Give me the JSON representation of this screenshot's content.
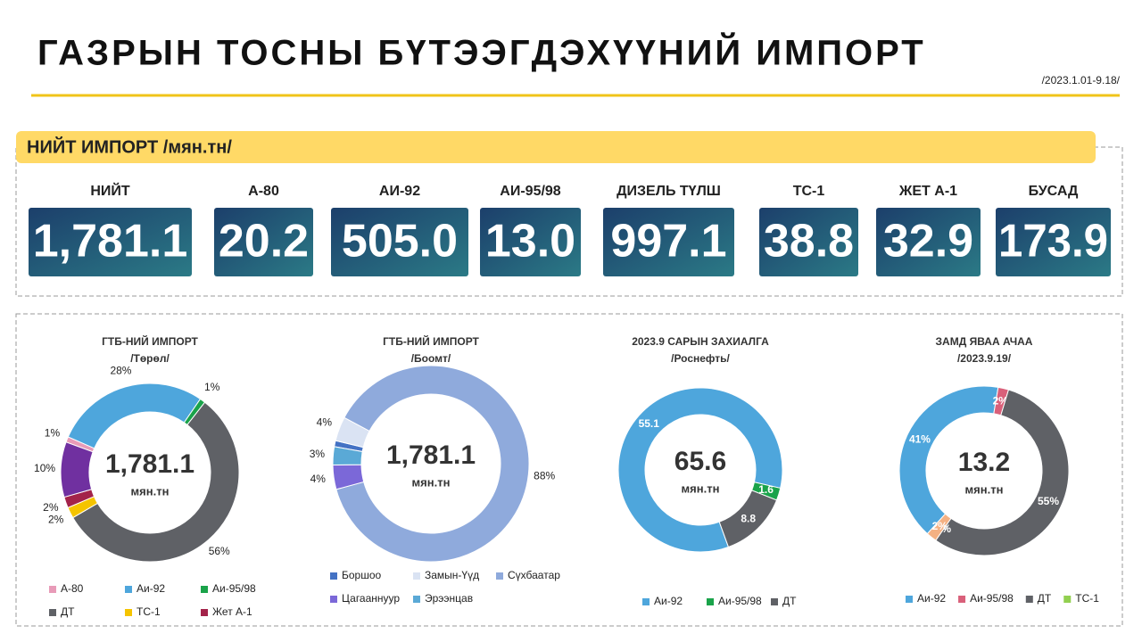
{
  "title": "ГАЗРЫН ТОСНЫ БҮТЭЭГДЭХҮҮНИЙ ИМПОРТ",
  "date": "/2023.1.01-9.18/",
  "section_title": "НИЙТ ИМПОРТ /мян.тн/",
  "kpis": [
    {
      "label": "НИЙТ",
      "value": "1,781.1"
    },
    {
      "label": "А-80",
      "value": "20.2"
    },
    {
      "label": "АИ-92",
      "value": "505.0"
    },
    {
      "label": "АИ-95/98",
      "value": "13.0"
    },
    {
      "label": "ДИЗЕЛЬ ТҮЛШ",
      "value": "997.1"
    },
    {
      "label": "ТС-1",
      "value": "38.8"
    },
    {
      "label": "ЖЕТ А-1",
      "value": "32.9"
    },
    {
      "label": "БУСАД",
      "value": "173.9"
    }
  ],
  "chart_data": [
    {
      "type": "donut",
      "title": "ГТБ-НИЙ ИМПОРТ",
      "subtitle": "/Төрөл/",
      "center_label": "1,781.1",
      "center_unit": "мян.тн",
      "categories": [
        "А-80",
        "Аи-92",
        "Аи-95/98",
        "ДТ",
        "ТС-1",
        "Жет А-1",
        null
      ],
      "values": [
        1,
        28,
        1,
        56,
        2,
        2,
        10
      ],
      "value_labels": [
        "1%",
        "28%",
        "1%",
        "56%",
        "2%",
        "2%",
        "10%"
      ],
      "colors": [
        "#e89bb8",
        "#4ea6dc",
        "#1aa34a",
        "#5f6166",
        "#f5c400",
        "#a3234a",
        "#7030a0"
      ]
    },
    {
      "type": "donut",
      "title": "ГТБ-НИЙ ИМПОРТ",
      "subtitle": "/Боомт/",
      "center_label": "1,781.1",
      "center_unit": "мян.тн",
      "categories": [
        "Боршоо",
        "Замын-Үүд",
        "Сүхбаатар",
        "Цагааннуур",
        "Эрээнцав"
      ],
      "values": [
        1,
        4,
        88,
        4,
        3
      ],
      "value_labels": [
        null,
        "4%",
        "88%",
        "4%",
        "3%"
      ],
      "colors": [
        "#4472c4",
        "#dae3f3",
        "#8faadc",
        "#7b68d8",
        "#5aa9d6"
      ]
    },
    {
      "type": "donut",
      "title": "2023.9 САРЫН ЗАХИАЛГА",
      "subtitle": "/Роснефть/",
      "center_label": "65.6",
      "center_unit": "мян.тн",
      "categories": [
        "Аи-92",
        "Аи-95/98",
        "ДТ"
      ],
      "values": [
        55.1,
        1.6,
        8.8
      ],
      "value_labels": [
        "55.1",
        "1.6",
        "8.8"
      ],
      "colors": [
        "#4ea6dc",
        "#1aa34a",
        "#5f6166"
      ]
    },
    {
      "type": "donut",
      "title": "ЗАМД ЯВАА АЧАА",
      "subtitle": "/2023.9.19/",
      "center_label": "13.2",
      "center_unit": "мян.тн",
      "categories": [
        "Аи-92",
        "Аи-95/98",
        "ДТ",
        "ТС-1",
        null
      ],
      "values": [
        41,
        2,
        55,
        0,
        2
      ],
      "value_labels": [
        "41%",
        "2%",
        "55%",
        "0%",
        "2%"
      ],
      "colors": [
        "#4ea6dc",
        "#d9607a",
        "#5f6166",
        "#92d050",
        "#f4b183"
      ]
    }
  ]
}
